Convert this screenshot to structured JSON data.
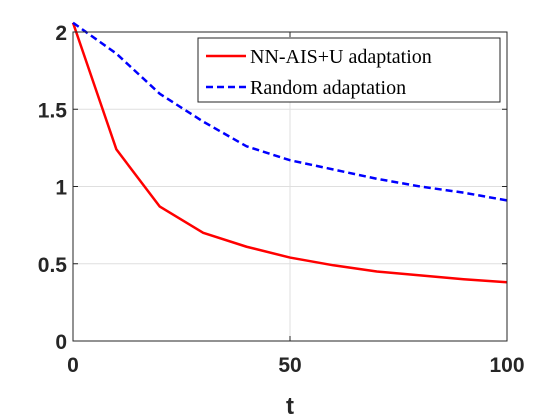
{
  "chart_data": {
    "type": "line",
    "title": "",
    "xlabel": "t",
    "ylabel": "",
    "xlim": [
      0,
      100
    ],
    "ylim": [
      0,
      2
    ],
    "xticks": [
      0,
      50,
      100
    ],
    "yticks": [
      0,
      0.5,
      1,
      1.5,
      2
    ],
    "xtick_labels": [
      "0",
      "50",
      "100"
    ],
    "ytick_labels": [
      "0",
      "0.5",
      "1",
      "1.5",
      "2"
    ],
    "grid": true,
    "legend_position": "top-right",
    "series": [
      {
        "name": "NN-AIS+U adaptation",
        "color": "#ff0000",
        "line_style": "solid",
        "x": [
          0,
          10,
          20,
          30,
          40,
          50,
          60,
          70,
          80,
          90,
          100
        ],
        "y": [
          2.06,
          1.24,
          0.87,
          0.7,
          0.61,
          0.54,
          0.49,
          0.45,
          0.425,
          0.4,
          0.38
        ]
      },
      {
        "name": "Random adaptation",
        "color": "#0000ff",
        "line_style": "dashed",
        "x": [
          0,
          10,
          20,
          30,
          40,
          50,
          60,
          70,
          80,
          90,
          100
        ],
        "y": [
          2.06,
          1.86,
          1.6,
          1.42,
          1.26,
          1.17,
          1.11,
          1.05,
          1.0,
          0.96,
          0.91
        ]
      }
    ]
  }
}
